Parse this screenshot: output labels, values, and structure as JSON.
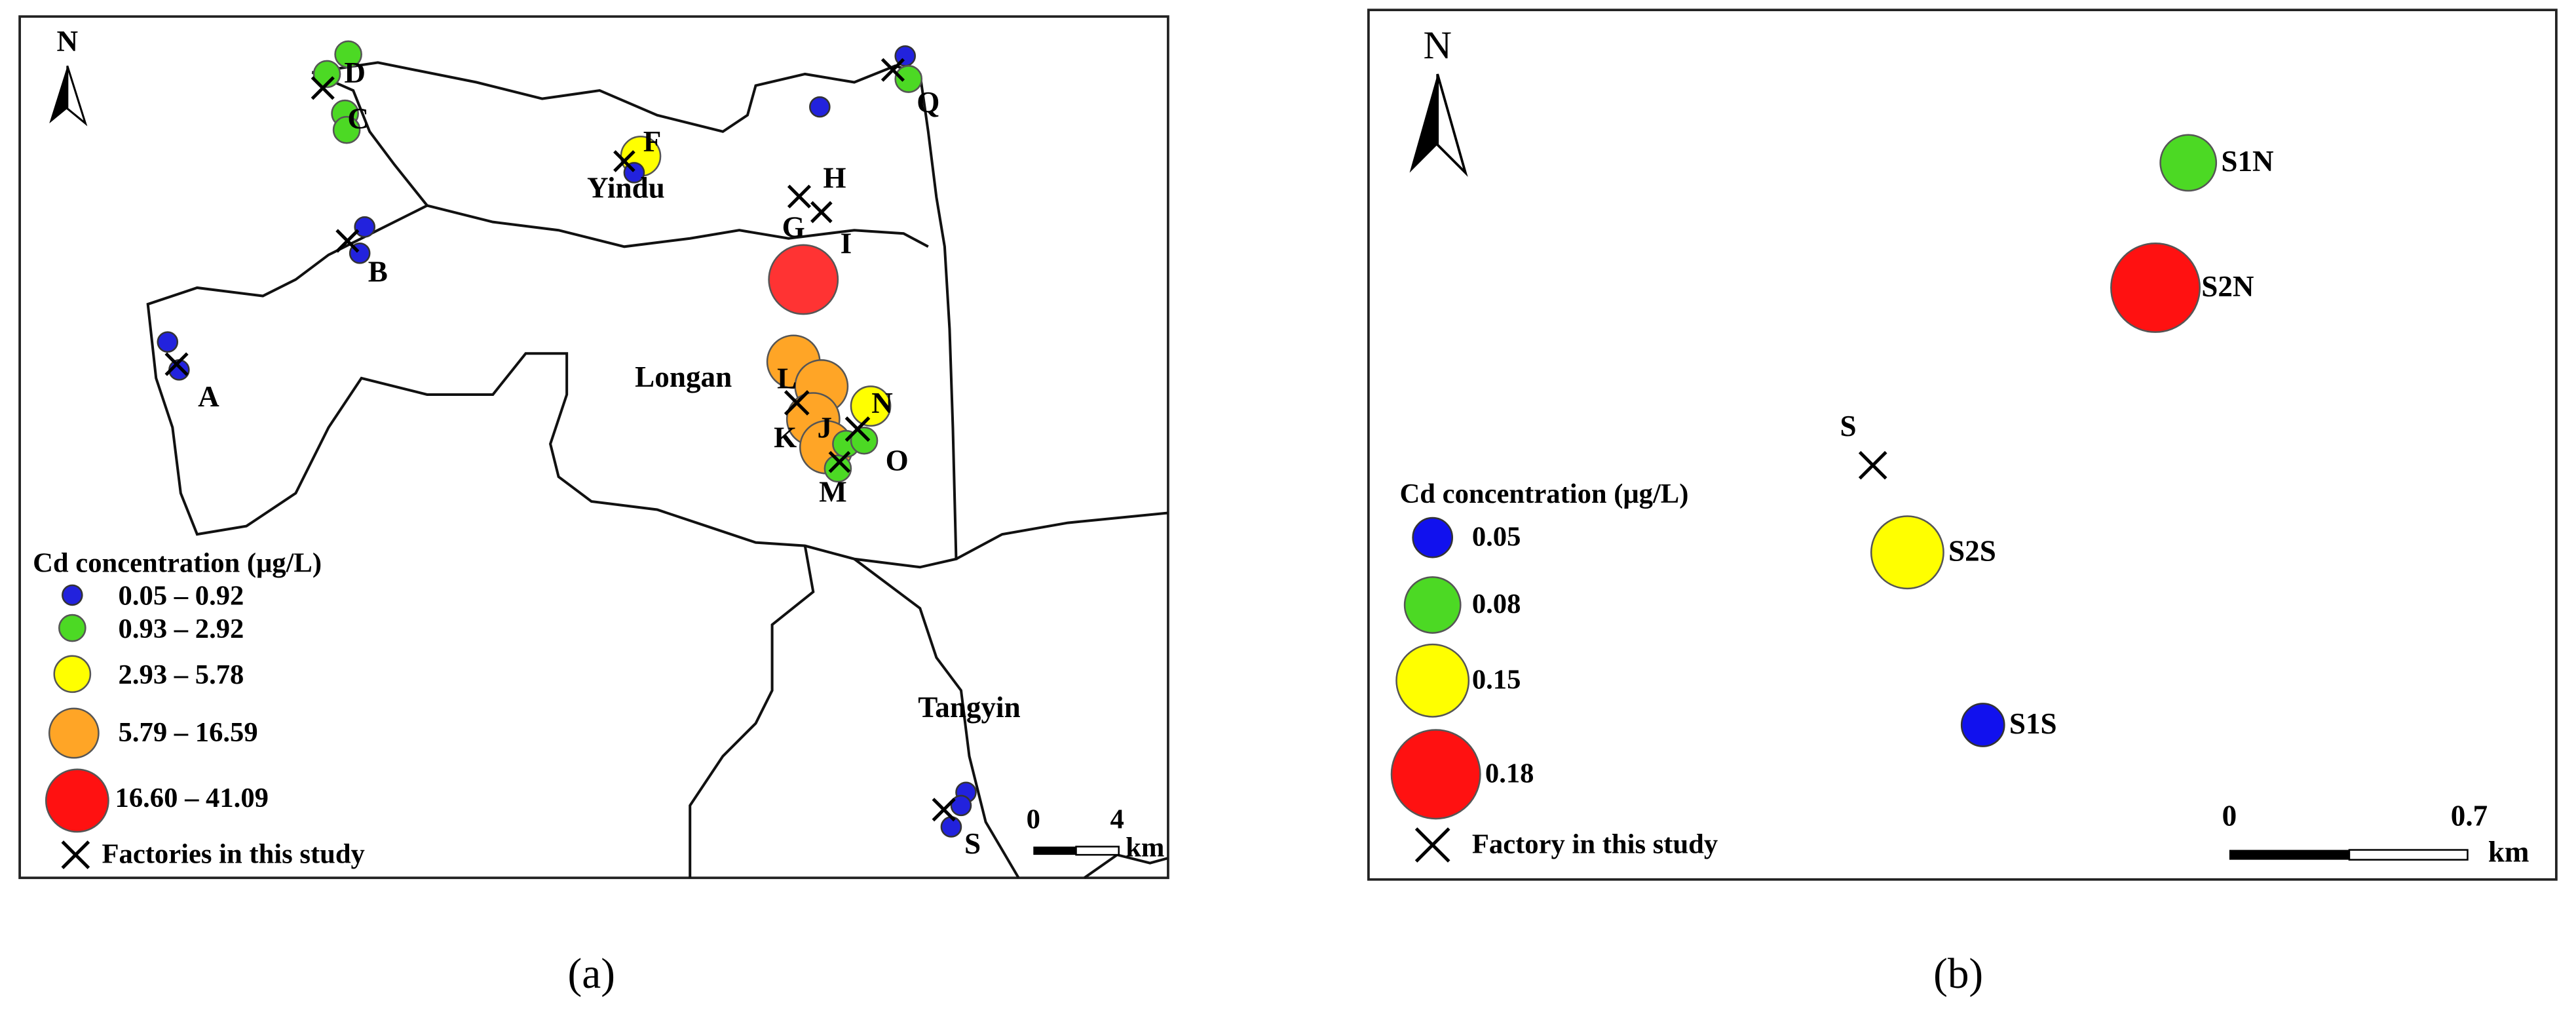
{
  "panels": [
    {
      "caption": "(a)",
      "north": "N",
      "places": {
        "yindu": "Yindu",
        "longan": "Longan",
        "tangyin": "Tangyin"
      },
      "sites": {
        "A": "A",
        "B": "B",
        "C": "C",
        "D": "D",
        "F": "F",
        "G": "G",
        "H": "H",
        "I": "I",
        "J": "J",
        "K": "K",
        "L": "L",
        "M": "M",
        "N": "N",
        "O": "O",
        "Q": "Q",
        "S": "S"
      },
      "legend": {
        "title": "Cd concentration (μg/L)",
        "classes": [
          "0.05 – 0.92",
          "0.93 – 2.92",
          "2.93 – 5.78",
          "5.79 – 16.59",
          "16.60 – 41.09"
        ],
        "factory": "Factories in this study"
      },
      "scale": {
        "start": "0",
        "end": "4",
        "unit": "km"
      }
    },
    {
      "caption": "(b)",
      "north": "N",
      "sites": {
        "S1N": "S1N",
        "S2N": "S2N",
        "S": "S",
        "S2S": "S2S",
        "S1S": "S1S"
      },
      "legend": {
        "title": "Cd concentration (μg/L)",
        "classes": [
          "0.05",
          "0.08",
          "0.15",
          "0.18"
        ],
        "factory": "Factory in this study"
      },
      "scale": {
        "start": "0",
        "end": "0.7",
        "unit": "km"
      }
    }
  ]
}
